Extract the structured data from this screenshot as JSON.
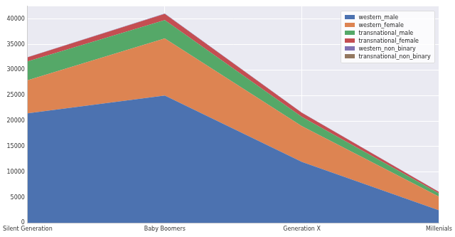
{
  "chart_data": {
    "type": "area",
    "stacked": true,
    "grid": true,
    "legend": "upper right",
    "categories": [
      "Silent Generation",
      "Baby Boomers",
      "Generation X",
      "Millenials"
    ],
    "series": [
      {
        "name": "western_male",
        "color": "#4c72b0",
        "values": [
          21500,
          25000,
          12000,
          2500
        ]
      },
      {
        "name": "western_female",
        "color": "#dd8452",
        "values": [
          6500,
          11200,
          7000,
          2700
        ]
      },
      {
        "name": "transnational_male",
        "color": "#55a868",
        "values": [
          3700,
          3600,
          1800,
          600
        ]
      },
      {
        "name": "transnational_female",
        "color": "#c44e52",
        "values": [
          800,
          1200,
          800,
          300
        ]
      },
      {
        "name": "western_non_binary",
        "color": "#8172b3",
        "values": [
          30,
          60,
          40,
          20
        ]
      },
      {
        "name": "transnational_non_binary",
        "color": "#937860",
        "values": [
          10,
          20,
          10,
          5
        ]
      }
    ],
    "ylim": [
      0,
      42500
    ],
    "yticks": [
      0,
      5000,
      10000,
      15000,
      20000,
      25000,
      30000,
      35000,
      40000
    ]
  }
}
